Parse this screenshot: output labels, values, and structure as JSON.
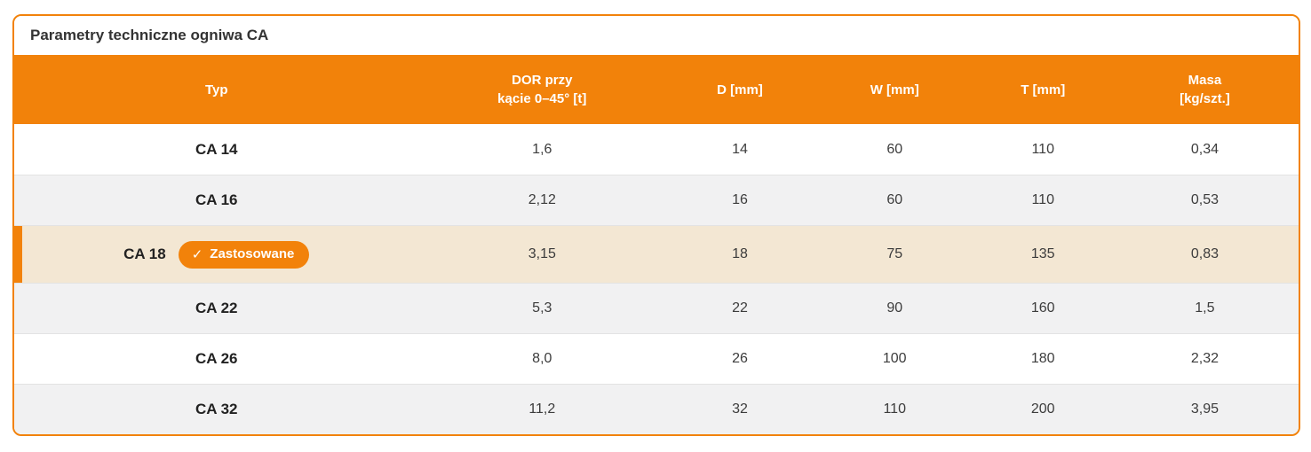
{
  "panel": {
    "title": "Parametry techniczne ogniwa CA"
  },
  "colors": {
    "accent": "#F2820A",
    "header-text": "#FFFFFF",
    "row-alt": "#F1F1F2",
    "highlight": "#F3E7D3",
    "separator": "#E3E3E3",
    "title-text": "#333333",
    "cell-text": "#3C3C3C",
    "typ-text": "#222222"
  },
  "badge": {
    "check": "✓",
    "label": "Zastosowane"
  },
  "table": {
    "columns": [
      {
        "label": "Typ"
      },
      {
        "label": "DOR przy",
        "label2": "kącie 0–45° [t]"
      },
      {
        "label": "D [mm]"
      },
      {
        "label": "W [mm]"
      },
      {
        "label": "T [mm]"
      },
      {
        "label": "Masa",
        "label2": "[kg/szt.]"
      }
    ],
    "rows": [
      {
        "typ": "CA 14",
        "dor": "1,6",
        "d": "14",
        "w": "60",
        "t": "110",
        "masa": "0,34"
      },
      {
        "typ": "CA 16",
        "dor": "2,12",
        "d": "16",
        "w": "60",
        "t": "110",
        "masa": "0,53"
      },
      {
        "typ": "CA 18",
        "dor": "3,15",
        "d": "18",
        "w": "75",
        "t": "135",
        "masa": "0,83",
        "applied": true
      },
      {
        "typ": "CA 22",
        "dor": "5,3",
        "d": "22",
        "w": "90",
        "t": "160",
        "masa": "1,5"
      },
      {
        "typ": "CA 26",
        "dor": "8,0",
        "d": "26",
        "w": "100",
        "t": "180",
        "masa": "2,32"
      },
      {
        "typ": "CA 32",
        "dor": "11,2",
        "d": "32",
        "w": "110",
        "t": "200",
        "masa": "3,95"
      }
    ]
  }
}
